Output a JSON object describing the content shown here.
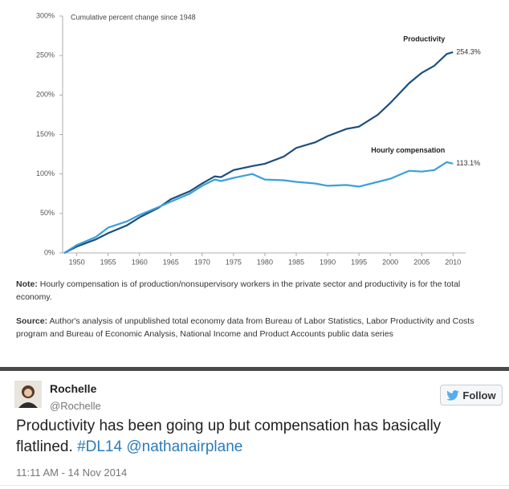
{
  "chart_data": {
    "type": "line",
    "subtitle": "Cumulative percent change since 1948",
    "x": [
      1948,
      1950,
      1953,
      1955,
      1958,
      1960,
      1963,
      1965,
      1968,
      1970,
      1972,
      1973,
      1975,
      1978,
      1980,
      1983,
      1985,
      1988,
      1990,
      1993,
      1995,
      1998,
      2000,
      2003,
      2005,
      2007,
      2009,
      2010
    ],
    "series": [
      {
        "name": "Productivity",
        "color": "#1d4f7a",
        "values": [
          0,
          8,
          17,
          25,
          35,
          45,
          57,
          68,
          78,
          88,
          97,
          96,
          105,
          110,
          113,
          122,
          133,
          140,
          148,
          157,
          160,
          175,
          190,
          215,
          228,
          237,
          252,
          254.3
        ],
        "value_labels": [
          null,
          null,
          null,
          null,
          null,
          null,
          null,
          null,
          null,
          null,
          null,
          null,
          null,
          null,
          null,
          null,
          null,
          null,
          null,
          null,
          null,
          null,
          null,
          null,
          null,
          null,
          null,
          "254.3%"
        ]
      },
      {
        "name": "Hourly compensation",
        "color": "#3aa0d8",
        "values": [
          0,
          10,
          20,
          32,
          40,
          48,
          58,
          65,
          75,
          85,
          93,
          91,
          95,
          100,
          93,
          92,
          90,
          88,
          85,
          86,
          84,
          90,
          94,
          104,
          103,
          105,
          115,
          113.1
        ],
        "value_labels": [
          null,
          null,
          null,
          null,
          null,
          null,
          null,
          null,
          null,
          null,
          null,
          null,
          null,
          null,
          null,
          null,
          null,
          null,
          null,
          null,
          null,
          null,
          null,
          null,
          null,
          null,
          null,
          "113.1%"
        ]
      }
    ],
    "xlim": [
      1948,
      2011.5
    ],
    "xticks": [
      1950,
      1955,
      1960,
      1965,
      1970,
      1975,
      1980,
      1985,
      1990,
      1995,
      2000,
      2005,
      2010
    ],
    "ylim": [
      0,
      300
    ],
    "yticks": [
      {
        "value": 0,
        "label": "0%"
      },
      {
        "value": 50,
        "label": "50%"
      },
      {
        "value": 100,
        "label": "100%"
      },
      {
        "value": 150,
        "label": "150%"
      },
      {
        "value": 200,
        "label": "200%"
      },
      {
        "value": 250,
        "label": "250%"
      },
      {
        "value": 300,
        "label": "300%"
      }
    ]
  },
  "notes": {
    "note_label": "Note:",
    "note_text": "Hourly compensation is of production/nonsupervisory workers in the private sector and productivity is for the total economy.",
    "source_label": "Source:",
    "source_text": "Author's analysis of unpublished total economy data from Bureau of Labor Statistics, Labor Productivity and Costs program and Bureau of Economic Analysis, National Income and Product Accounts public data series"
  },
  "tweet": {
    "name": "Rochelle",
    "handle": "@Rochelle",
    "follow": "Follow",
    "text": "Productivity has been going up but compensation has basically flatlined.",
    "hashtag": "#DL14",
    "mention": "@nathanairplane",
    "time": "11:11 AM - 14 Nov 2014"
  }
}
